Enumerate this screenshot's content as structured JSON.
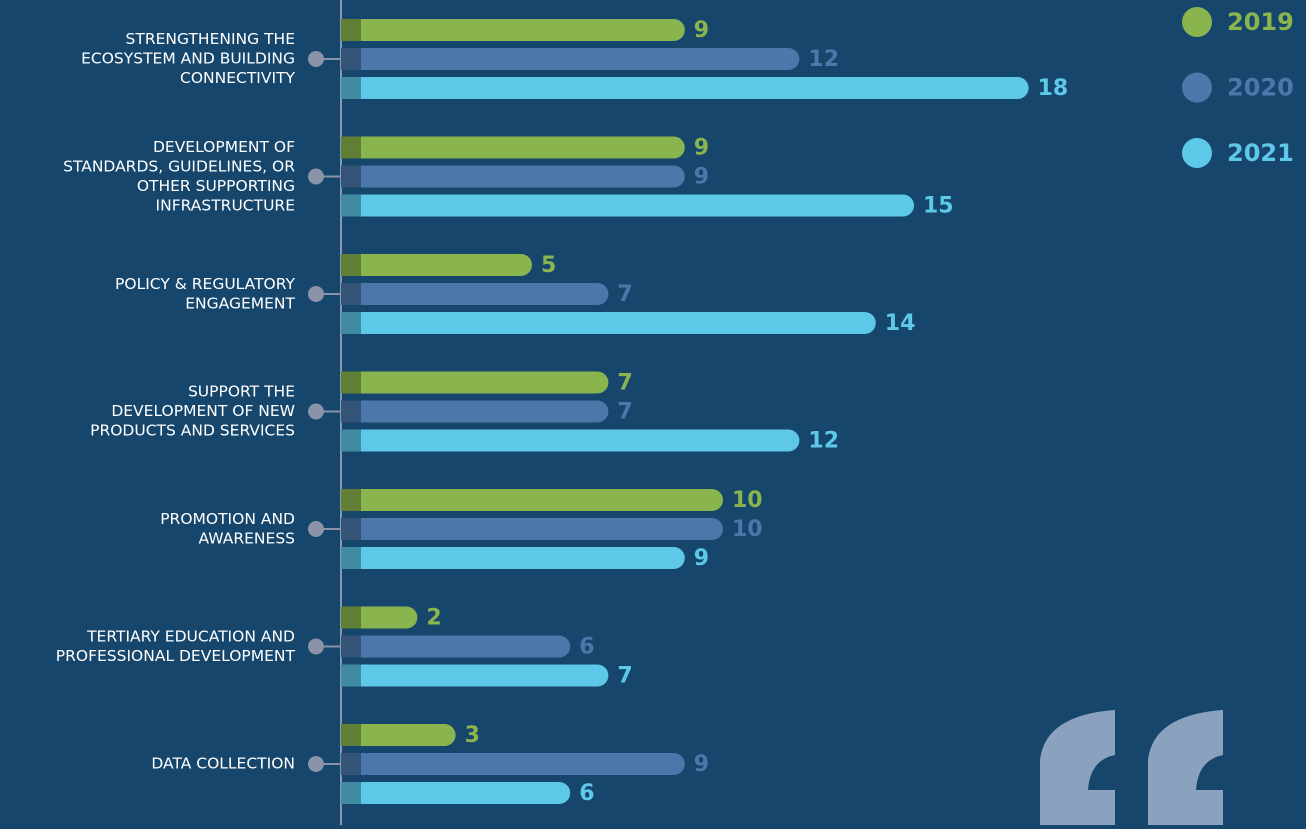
{
  "chart_data": {
    "type": "bar",
    "orientation": "horizontal",
    "categories": [
      [
        "STRENGTHENING THE",
        "ECOSYSTEM AND BUILDING",
        "CONNECTIVITY"
      ],
      [
        "DEVELOPMENT OF",
        "STANDARDS, GUIDELINES, OR",
        "OTHER SUPPORTING",
        "INFRASTRUCTURE"
      ],
      [
        "POLICY & REGULATORY",
        "ENGAGEMENT"
      ],
      [
        "SUPPORT THE",
        "DEVELOPMENT OF NEW",
        "PRODUCTS AND SERVICES"
      ],
      [
        "PROMOTION AND",
        "AWARENESS"
      ],
      [
        "TERTIARY EDUCATION AND",
        "PROFESSIONAL DEVELOPMENT"
      ],
      [
        "DATA COLLECTION"
      ]
    ],
    "series": [
      {
        "name": "2019",
        "color": "#8ab54e",
        "values": [
          9,
          9,
          5,
          7,
          10,
          2,
          3
        ]
      },
      {
        "name": "2020",
        "color": "#4a78ab",
        "values": [
          12,
          9,
          7,
          7,
          10,
          6,
          9
        ]
      },
      {
        "name": "2021",
        "color": "#5ec8e8",
        "values": [
          18,
          15,
          14,
          12,
          9,
          7,
          6
        ]
      }
    ],
    "legend": "top-right"
  }
}
